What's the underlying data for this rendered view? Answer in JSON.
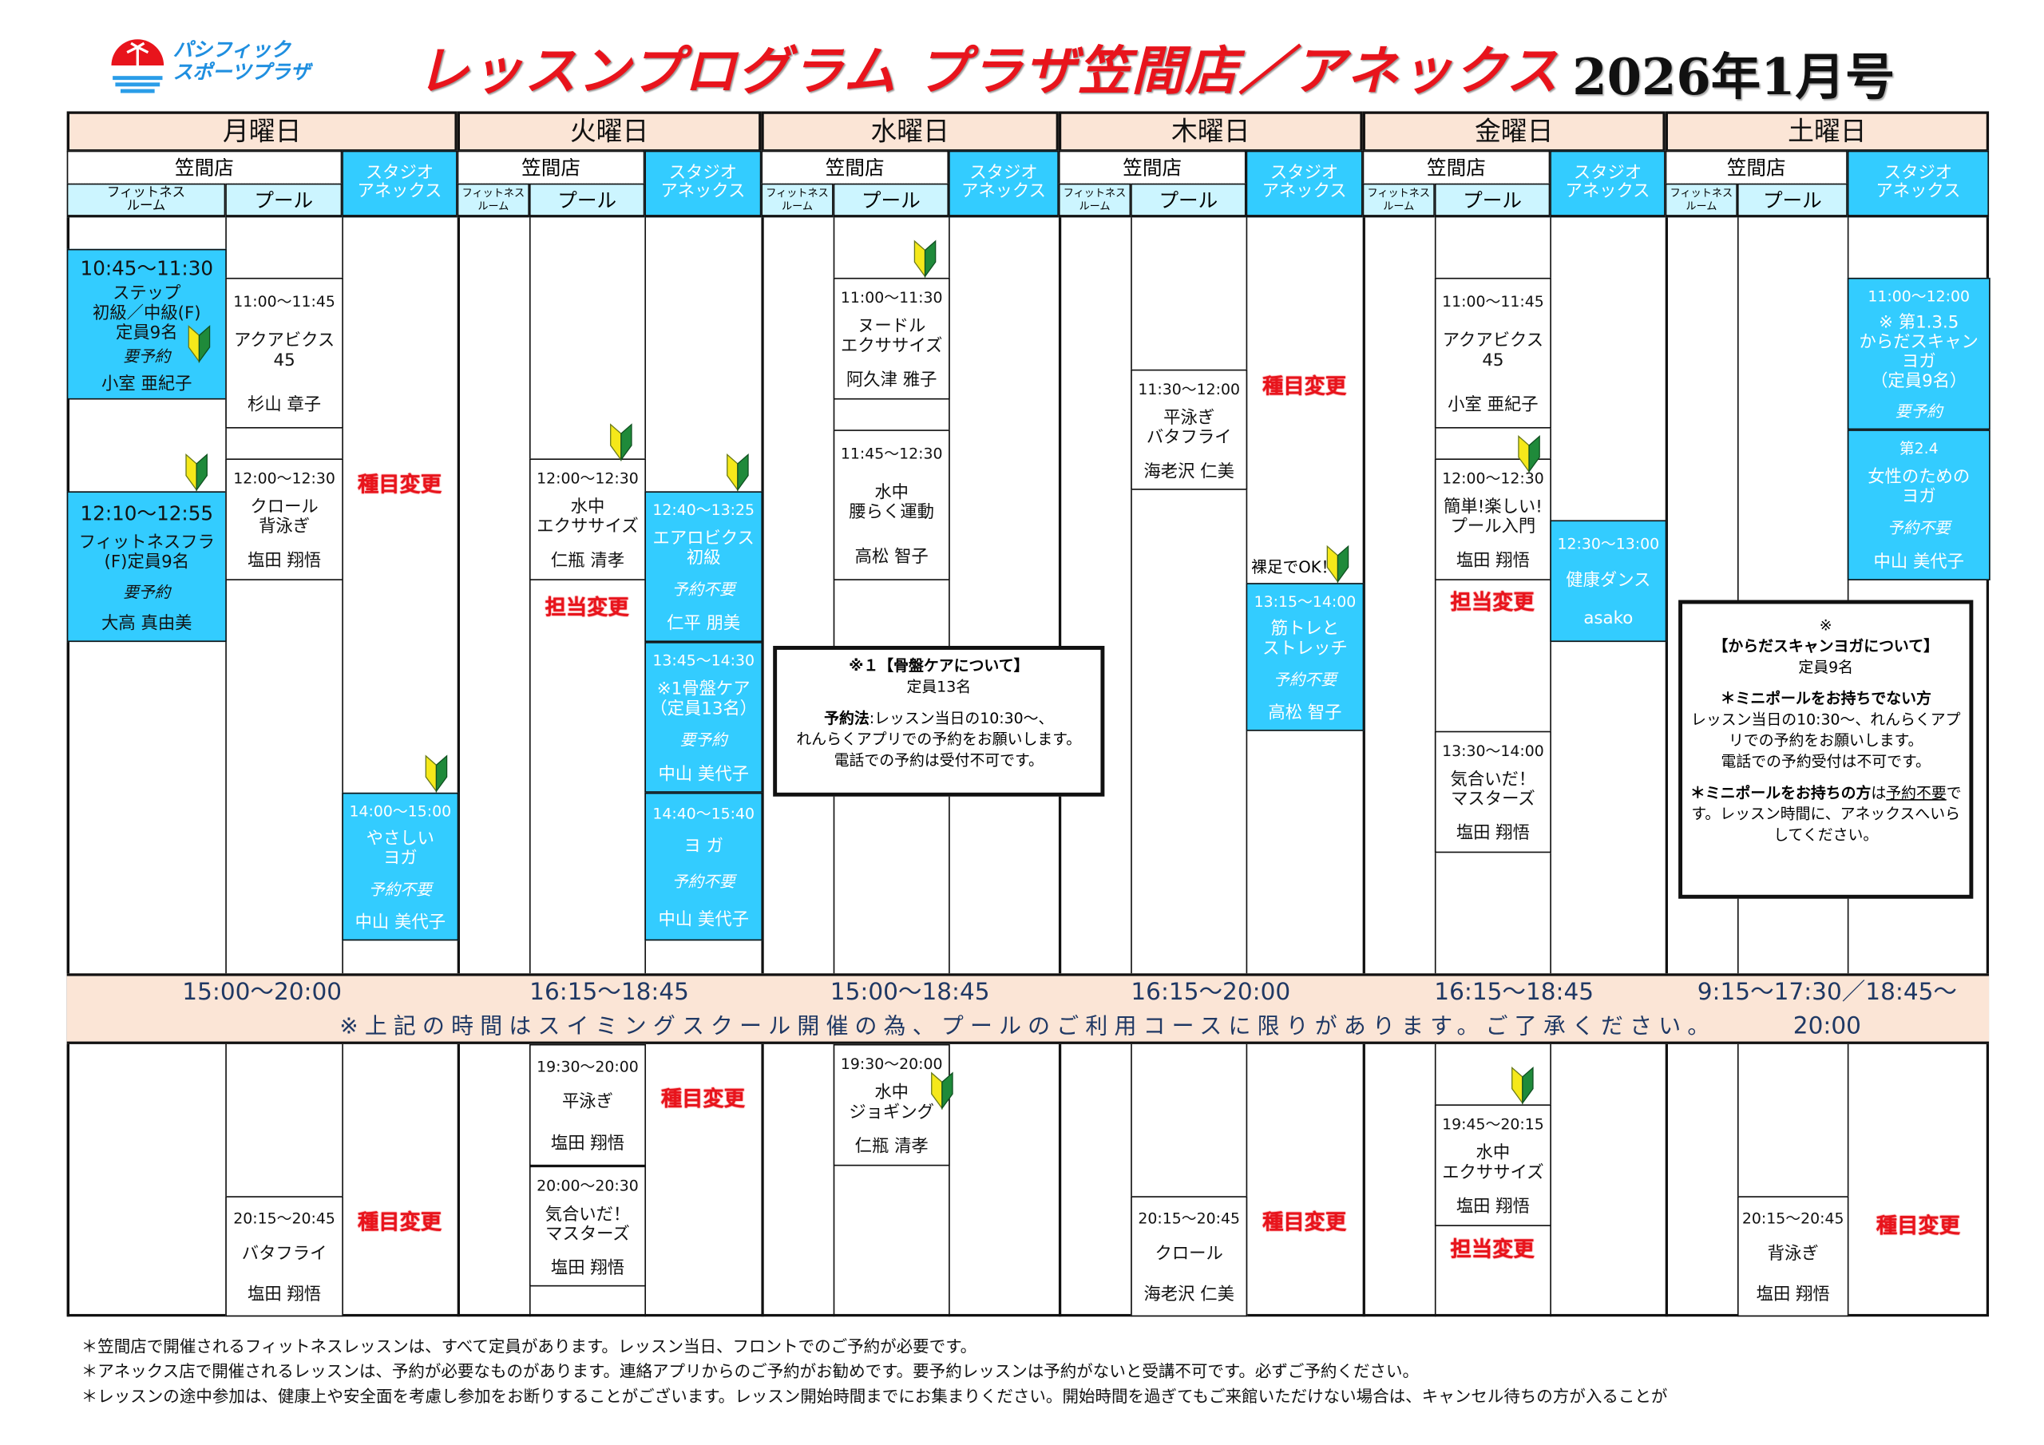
{
  "header": {
    "logo": {
      "text_main": "パシフィック\nスポーツプラザ",
      "text_emblem": "PACIFIC SPORTS PLAZA"
    },
    "title": "レッスンプログラム  プラザ笠間店／アネックス",
    "issue": "2026年1月号"
  },
  "colors": {
    "accent_red": "#e8141c",
    "studio_blue": "#33ccff",
    "band_peach": "#fbe5d6",
    "sub_cyan": "#ccf5ff"
  },
  "days": [
    {
      "label": "月曜日",
      "band_time": "15:00～20:00"
    },
    {
      "label": "火曜日",
      "band_time": "16:15～18:45"
    },
    {
      "label": "水曜日",
      "band_time": "15:00～18:45"
    },
    {
      "label": "木曜日",
      "band_time": "16:15～20:00"
    },
    {
      "label": "金曜日",
      "band_time": "16:15～18:45"
    },
    {
      "label": "土曜日",
      "band_time": "9:15～17:30／18:45～20:00"
    }
  ],
  "subheaders": {
    "shop": "笠間店",
    "fitness": "フィットネス\nルーム",
    "pool": "プール",
    "annex": "スタジオ\nアネックス"
  },
  "notice": "※上記の時間はスイミングスクール開催の為、プールのご利用コースに限りがあります。ご了承ください。",
  "blocks": [
    {
      "time": "10:45～11:30",
      "title": "ステップ\n初級／中級(F)\n定員9名",
      "note": "要予約",
      "instructor": "小室 亜紀子"
    },
    {
      "time": "12:10～12:55",
      "title": "フィットネスフラ\n(F)定員9名",
      "note": "要予約",
      "instructor": "大高 真由美"
    },
    {
      "time": "11:00～11:45",
      "title": "アクアビクス\n45",
      "note": "",
      "instructor": "杉山 章子"
    },
    {
      "time": "12:00～12:30",
      "title": "クロール\n背泳ぎ",
      "note": "",
      "instructor": "塩田 翔悟"
    },
    {
      "time": "14:00～15:00",
      "title": "やさしい\nヨガ",
      "note": "予約不要",
      "instructor": "中山 美代子"
    },
    {
      "time": "12:00～12:30",
      "title": "水中\nエクササイズ",
      "note": "",
      "instructor": "仁瓶 清孝"
    },
    {
      "time": "12:40～13:25",
      "title": "エアロビクス\n初級",
      "note": "予約不要",
      "instructor": "仁平 朋美"
    },
    {
      "time": "13:45～14:30",
      "title": "※1骨盤ケア\n（定員13名）",
      "note": "要予約",
      "instructor": "中山 美代子"
    },
    {
      "time": "14:40～15:40",
      "title": "ヨ ガ",
      "note": "予約不要",
      "instructor": "中山 美代子"
    },
    {
      "time": "11:00～11:30",
      "title": "ヌードル\nエクササイズ",
      "note": "",
      "instructor": "阿久津 雅子"
    },
    {
      "time": "11:45～12:30",
      "title": "水中\n腰らく運動",
      "note": "",
      "instructor": "高松 智子"
    },
    {
      "time": "11:30～12:00",
      "title": "平泳ぎ\nバタフライ",
      "note": "",
      "instructor": "海老沢 仁美"
    },
    {
      "time": "13:15～14:00",
      "title": "筋トレと\nストレッチ",
      "note": "予約不要",
      "instructor": "高松 智子"
    },
    {
      "time": "11:00～11:45",
      "title": "アクアビクス\n45",
      "note": "",
      "instructor": "小室 亜紀子"
    },
    {
      "time": "12:00～12:30",
      "title": "簡単!楽しい!\nプール入門",
      "note": "",
      "instructor": "塩田 翔悟"
    },
    {
      "time": "13:30～14:00",
      "title": "気合いだ！\nマスターズ",
      "note": "",
      "instructor": "塩田 翔悟"
    },
    {
      "time": "12:30～13:00",
      "title": "健康ダンス",
      "note": "",
      "instructor": "asako"
    },
    {
      "time": "11:00～12:00",
      "title": "※ 第1.3.5\nからだスキャン\nヨガ\n（定員9名）",
      "note": "要予約",
      "instructor": ""
    },
    {
      "time": "第2.4",
      "title": "女性のための\nヨガ",
      "note": "予約不要",
      "instructor": "中山 美代子"
    },
    {
      "time": "20:15～20:45",
      "title": "バタフライ",
      "note": "",
      "instructor": "塩田 翔悟"
    },
    {
      "time": "19:30～20:00",
      "title": "平泳ぎ",
      "note": "",
      "instructor": "塩田 翔悟"
    },
    {
      "time": "20:00～20:30",
      "title": "気合いだ！\nマスターズ",
      "note": "",
      "instructor": "塩田 翔悟"
    },
    {
      "time": "19:30～20:00",
      "title": "水中\nジョギング",
      "note": "",
      "instructor": "仁瓶 清孝"
    },
    {
      "time": "20:15～20:45",
      "title": "クロール",
      "note": "",
      "instructor": "海老沢 仁美"
    },
    {
      "time": "19:45～20:15",
      "title": "水中\nエクササイズ",
      "note": "",
      "instructor": "塩田 翔悟"
    },
    {
      "time": "20:15～20:45",
      "title": "背泳ぎ",
      "note": "",
      "instructor": "塩田 翔悟"
    }
  ],
  "marks": [
    "種目変更",
    "担当変更",
    "種目変更",
    "担当変更",
    "種目変更",
    "種目変更",
    "種目変更",
    "担当変更",
    "種目変更"
  ],
  "barefoot_label": "裸足でOK！",
  "beginner_icon": "beginner-mark-icon",
  "note_pelvic": {
    "heading": "※１【骨盤ケアについて】",
    "capacity": "定員13名",
    "method_label": "予約法",
    "method_text": ":レッスン当日の10:30～、\nれんらくアプリでの予約をお願いします。\n電話での予約は受付不可です。"
  },
  "note_scan": {
    "mark": "※",
    "heading": "【からだスキャンヨガについて】",
    "capacity": "定員9名",
    "no_pole_heading": "＊ミニポールをお持ちでない方",
    "no_pole_text": "レッスン当日の10:30～、れんらくアプリでの予約をお願いします。\n電話での予約受付は不可です。",
    "pole_heading": "＊ミニポールをお持ちの方",
    "pole_mid": "は",
    "pole_underlined": "予約不要",
    "pole_text": "です。レッスン時間に、アネックスへいらしてください。"
  },
  "footer": [
    "＊笠間店で開催されるフィットネスレッスンは、すべて定員があります。レッスン当日、フロントでのご予約が必要です。",
    "＊アネックス店で開催されるレッスンは、予約が必要なものがあります。連絡アプリからのご予約がお勧めです。要予約レッスンは予約がないと受講不可です。必ずご予約ください。",
    "＊レッスンの途中参加は、健康上や安全面を考慮し参加をお断りすることがございます。レッスン開始時間までにお集まりください。開始時間を過ぎてもご来館いただけない場合は、キャンセル待ちの方が入ることが"
  ]
}
